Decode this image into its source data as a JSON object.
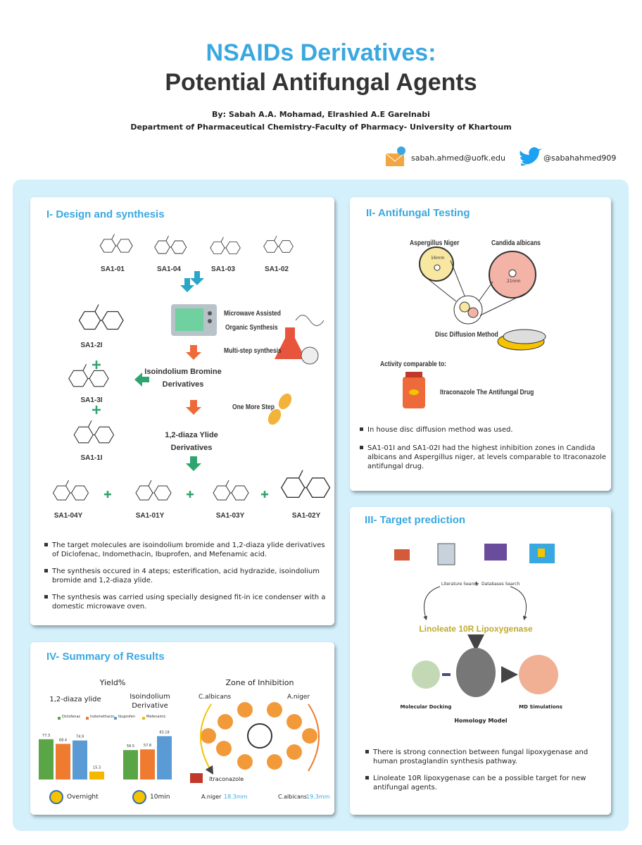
{
  "header": {
    "title_line1": "NSAIDs Derivatives:",
    "title_line2": "Potential Antifungal Agents",
    "authors": "By: Sabah A.A. Mohamad, Elrashied A.E Garelnabi",
    "affiliation": "Department of Pharmaceutical Chemistry-Faculty of Pharmacy- University of Khartoum",
    "email": "sabah.ahmed@uofk.edu",
    "twitter": "@sabahahmed909"
  },
  "design": {
    "title": "I- Design and synthesis",
    "starting": [
      "SA1-01",
      "SA1-04",
      "SA1-03",
      "SA1-02"
    ],
    "steps": [
      "Microwave Assisted",
      "Organic Synthesis",
      "Multi-step synthesis",
      "Isoindolium Bromine",
      "Derivatives",
      "One More Step",
      "1,2-diaza Ylide",
      "Derivatives"
    ],
    "intermediates": [
      "SA1-2I",
      "SA1-3I",
      "SA1-1I"
    ],
    "products": [
      "SA1-04Y",
      "SA1-01Y",
      "SA1-03Y",
      "SA1-02Y"
    ],
    "bullets": [
      "The target molecules are isoindolium bromide and 1,2-diaza ylide derivatives of Diclofenac,  Indomethacin,  Ibuprofen,  and Mefenamic acid.",
      "The synthesis occured in 4 ateps; esterification,  acid hydrazide,  isoindolium bromide and 1,2-diaza ylide.",
      "The synthesis was carried using specially designed fit-in ice condenser with a domestic microwave oven."
    ]
  },
  "testing": {
    "title": "II- Antifungal Testing",
    "organisms": [
      "Aspergillus Niger",
      "Candida albicans"
    ],
    "zones": [
      "16mm",
      "21mm"
    ],
    "method": "Disc Diffusion Method",
    "comparable": "Activity comparable to:",
    "drug": "Itraconazole The Antifungal Drug",
    "bullets": [
      "In house disc diffusion method was used.",
      "SA1-01I and SA1-02I had the highest inhibition zones in Candida albicans and Aspergillus niger,  at levels comparable to Itraconazole antifungal drug."
    ]
  },
  "target": {
    "title": "III- Target prediction",
    "searches": [
      "Literature Search",
      "Databases Search"
    ],
    "enzyme": "Linoleate 10R Lipoxygenase",
    "methods": [
      "Molecular Docking",
      "Homology Model",
      "MD Simulations"
    ],
    "bullets": [
      "There  is strong connection between fungal lipoxygenase and human prostaglandin synthesis pathway.",
      "Linoleate 10R lipoxygenase can be a possible target for new antifungal agents."
    ]
  },
  "summary": {
    "title": "IV- Summary of Results",
    "yield": {
      "title": "Yield%",
      "series_names": [
        "Diclofenac",
        "Indomethacin",
        "Ibuprofen",
        "Mefenamic"
      ],
      "colors": [
        "#5aa545",
        "#ee7b30",
        "#5b9bd5",
        "#f5b800"
      ],
      "groups": [
        {
          "label": [
            "1,2-diaza ylide"
          ],
          "values": [
            77.3,
            68.4,
            74.9,
            15.3
          ],
          "time": "Overnight"
        },
        {
          "label": [
            "Isoindolium",
            "Derivative"
          ],
          "values": [
            56.5,
            57.8,
            83.18
          ],
          "time": "10min"
        }
      ]
    },
    "zone": {
      "title": "Zone of Inhibition",
      "organisms": [
        "C.albicans",
        "A.niger"
      ],
      "reference": "Itraconazole",
      "results": [
        {
          "name": "A.niger",
          "value": "18.3mm"
        },
        {
          "name": "C.albicans",
          "value": "19.3mm"
        }
      ]
    }
  }
}
